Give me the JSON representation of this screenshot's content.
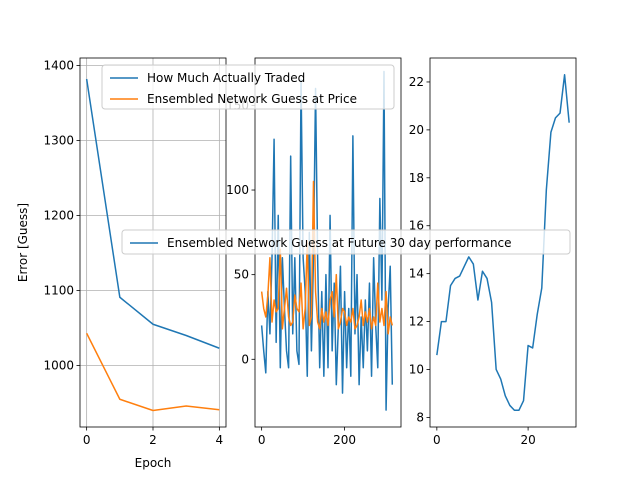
{
  "chart_data": [
    {
      "type": "line",
      "xlabel": "Epoch",
      "ylabel": "Error [Guess]",
      "xlim": [
        -0.2,
        4.2
      ],
      "ylim": [
        918,
        1410
      ],
      "xticks": [
        0,
        2,
        4
      ],
      "yticks": [
        1000,
        1100,
        1200,
        1300,
        1400
      ],
      "grid": true,
      "legend_position": "upper right",
      "series": [
        {
          "name": "How Much Actually Traded",
          "color": "#1f77b4",
          "x": [
            0,
            1,
            2,
            3,
            4
          ],
          "y": [
            1382,
            1091,
            1055,
            1040,
            1023
          ]
        },
        {
          "name": "Ensembled Network Guess at Price",
          "color": "#ff7f0e",
          "x": [
            0,
            1,
            2,
            3,
            4
          ],
          "y": [
            1043,
            955,
            940,
            946,
            941
          ]
        }
      ]
    },
    {
      "type": "line",
      "xlim": [
        -16,
        336
      ],
      "ylim": [
        -40,
        178
      ],
      "xticks": [
        0,
        200
      ],
      "yticks": [
        0,
        50,
        100,
        150
      ],
      "grid": false,
      "series": [
        {
          "name": "How Much Actually Traded",
          "color": "#1f77b4",
          "x": [
            0,
            5,
            10,
            15,
            20,
            25,
            30,
            35,
            40,
            45,
            50,
            55,
            60,
            65,
            70,
            75,
            80,
            85,
            90,
            95,
            100,
            105,
            110,
            115,
            120,
            125,
            130,
            135,
            140,
            145,
            150,
            155,
            160,
            165,
            170,
            175,
            180,
            185,
            190,
            195,
            200,
            205,
            210,
            215,
            220,
            225,
            230,
            235,
            240,
            245,
            250,
            255,
            260,
            265,
            270,
            275,
            280,
            285,
            290,
            295,
            300,
            305,
            310,
            315
          ],
          "y": [
            20,
            5,
            -8,
            40,
            15,
            60,
            130,
            10,
            85,
            -5,
            60,
            30,
            5,
            -5,
            120,
            15,
            60,
            5,
            -3,
            165,
            60,
            40,
            -10,
            75,
            5,
            60,
            160,
            60,
            -5,
            40,
            -10,
            50,
            -5,
            85,
            5,
            45,
            -15,
            20,
            55,
            -20,
            40,
            -5,
            30,
            -10,
            132,
            15,
            50,
            -15,
            25,
            -5,
            35,
            5,
            45,
            -10,
            60,
            20,
            -5,
            95,
            35,
            170,
            -30,
            30,
            55,
            -15
          ]
        },
        {
          "name": "Ensembled Network Guess at Price",
          "color": "#ff7f0e",
          "x": [
            0,
            5,
            10,
            15,
            20,
            25,
            30,
            35,
            40,
            45,
            50,
            55,
            60,
            65,
            70,
            75,
            80,
            85,
            90,
            95,
            100,
            105,
            110,
            115,
            120,
            125,
            130,
            135,
            140,
            145,
            150,
            155,
            160,
            165,
            170,
            175,
            180,
            185,
            190,
            195,
            200,
            205,
            210,
            215,
            220,
            225,
            230,
            235,
            240,
            245,
            250,
            255,
            260,
            265,
            270,
            275,
            280,
            285,
            290,
            295,
            300,
            305,
            310,
            315
          ],
          "y": [
            40,
            30,
            25,
            38,
            60,
            22,
            35,
            28,
            30,
            65,
            18,
            30,
            42,
            25,
            20,
            22,
            38,
            30,
            28,
            45,
            18,
            30,
            70,
            20,
            25,
            105,
            40,
            22,
            18,
            30,
            22,
            28,
            20,
            35,
            40,
            25,
            50,
            18,
            22,
            30,
            28,
            20,
            25,
            22,
            30,
            18,
            20,
            25,
            35,
            20,
            28,
            22,
            30,
            18,
            25,
            20,
            45,
            22,
            30,
            20,
            40,
            15,
            25,
            20
          ]
        }
      ]
    },
    {
      "type": "line",
      "xlim": [
        -1.5,
        30.5
      ],
      "ylim": [
        7.6,
        23.0
      ],
      "xticks": [
        0,
        20
      ],
      "yticks": [
        8,
        10,
        12,
        14,
        16,
        18,
        20,
        22
      ],
      "grid": false,
      "legend_position": "center",
      "series": [
        {
          "name": "Ensembled Network Guess at Future 30 day performance",
          "color": "#1f77b4",
          "x": [
            0,
            1,
            2,
            3,
            4,
            5,
            6,
            7,
            8,
            9,
            10,
            11,
            12,
            13,
            14,
            15,
            16,
            17,
            18,
            19,
            20,
            21,
            22,
            23,
            24,
            25,
            26,
            27,
            28,
            29
          ],
          "y": [
            10.6,
            12.0,
            12.0,
            13.5,
            13.8,
            13.9,
            14.3,
            14.7,
            14.4,
            12.9,
            14.1,
            13.8,
            12.8,
            10.0,
            9.6,
            8.9,
            8.5,
            8.3,
            8.3,
            8.7,
            11.0,
            10.9,
            12.3,
            13.4,
            17.5,
            19.9,
            20.5,
            20.7,
            22.3,
            20.3
          ]
        }
      ]
    }
  ]
}
